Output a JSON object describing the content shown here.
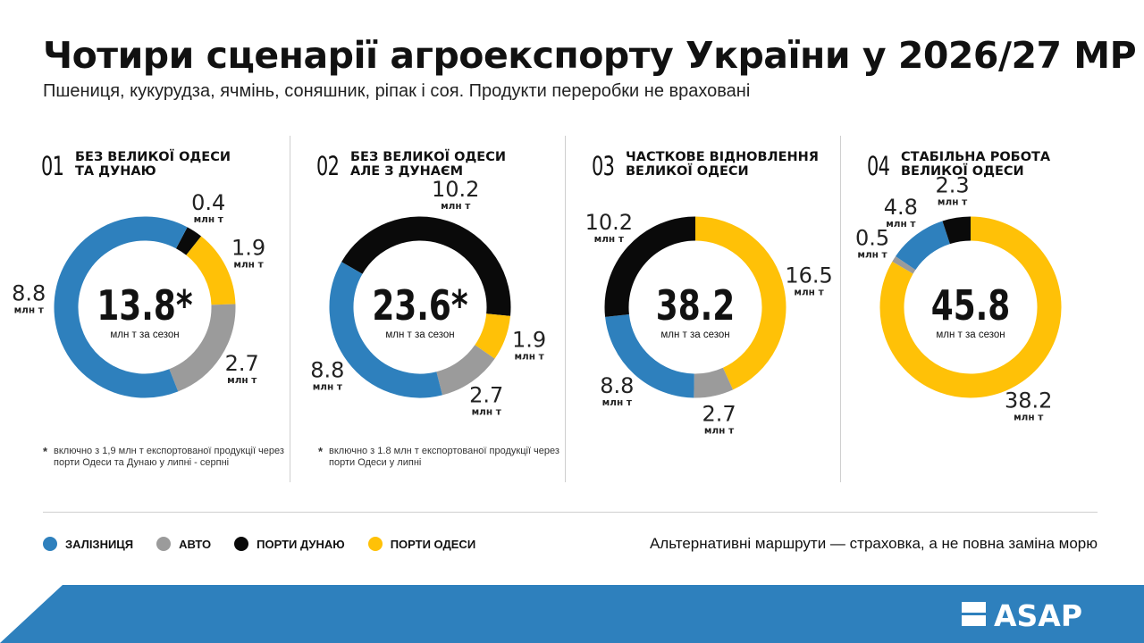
{
  "title": "Чотири сценарії агроекспорту України у 2026/27 МР",
  "subtitle": "Пшениця, кукурудза, ячмінь, соняшник, ріпак і соя. Продукти переробки не враховані",
  "colors": {
    "rail": "#2E80BD",
    "auto": "#9B9B9B",
    "danube": "#0A0A0A",
    "odesa": "#FFC107",
    "footer_band": "#2E80BD"
  },
  "legend": [
    {
      "key": "rail",
      "label": "ЗАЛІЗНИЦЯ",
      "color": "#2E80BD"
    },
    {
      "key": "auto",
      "label": "АВТО",
      "color": "#9B9B9B"
    },
    {
      "key": "danube",
      "label": "ПОРТИ ДУНАЮ",
      "color": "#0A0A0A"
    },
    {
      "key": "odesa",
      "label": "ПОРТИ ОДЕСИ",
      "color": "#FFC107"
    }
  ],
  "tagline": "Альтернативні маршрути — страховка, а не повна заміна морю",
  "brand": {
    "logo": "ASAP"
  },
  "chart_data": [
    {
      "type": "pie",
      "number": "01",
      "heading": [
        "БЕЗ ВЕЛИКОЇ ОДЕСИ",
        "ТА ДУНАЮ"
      ],
      "total": "13.8*",
      "total_unit": "млн т за сезон",
      "slices": [
        {
          "category": "rail",
          "value": 8.8,
          "label": "8.8",
          "unit": "млн т"
        },
        {
          "category": "danube",
          "value": 0.4,
          "label": "0.4",
          "unit": "млн т"
        },
        {
          "category": "odesa",
          "value": 1.9,
          "label": "1.9",
          "unit": "млн т"
        },
        {
          "category": "auto",
          "value": 2.7,
          "label": "2.7",
          "unit": "млн т"
        }
      ],
      "note": "включно з 1,9 млн т експортованої продукції через порти Одеси та Дунаю у липні - серпні"
    },
    {
      "type": "pie",
      "number": "02",
      "heading": [
        "БЕЗ ВЕЛИКОЇ ОДЕСИ",
        "АЛЕ З ДУНАЄМ"
      ],
      "total": "23.6*",
      "total_unit": "млн т за сезон",
      "slices": [
        {
          "category": "rail",
          "value": 8.8,
          "label": "8.8",
          "unit": "млн т"
        },
        {
          "category": "danube",
          "value": 10.2,
          "label": "10.2",
          "unit": "млн т"
        },
        {
          "category": "odesa",
          "value": 1.9,
          "label": "1.9",
          "unit": "млн т"
        },
        {
          "category": "auto",
          "value": 2.7,
          "label": "2.7",
          "unit": "млн т"
        }
      ],
      "note": "включно з 1.8 млн т експортованої продукції через порти Одеси у липні"
    },
    {
      "type": "pie",
      "number": "03",
      "heading": [
        "ЧАСТКОВЕ ВІДНОВЛЕННЯ",
        "ВЕЛИКОЇ ОДЕСИ"
      ],
      "total": "38.2",
      "total_unit": "млн т за сезон",
      "slices": [
        {
          "category": "rail",
          "value": 8.8,
          "label": "8.8",
          "unit": "млн т"
        },
        {
          "category": "danube",
          "value": 10.2,
          "label": "10.2",
          "unit": "млн т"
        },
        {
          "category": "odesa",
          "value": 16.5,
          "label": "16.5",
          "unit": "млн т"
        },
        {
          "category": "auto",
          "value": 2.7,
          "label": "2.7",
          "unit": "млн т"
        }
      ],
      "note": ""
    },
    {
      "type": "pie",
      "number": "04",
      "heading": [
        "СТАБІЛЬНА РОБОТА",
        "ВЕЛИКОЇ ОДЕСИ"
      ],
      "total": "45.8",
      "total_unit": "млн т за сезон",
      "slices": [
        {
          "category": "danube",
          "value": 2.3,
          "label": "2.3",
          "unit": "млн т"
        },
        {
          "category": "odesa",
          "value": 38.2,
          "label": "38.2",
          "unit": "млн т"
        },
        {
          "category": "auto",
          "value": 0.5,
          "label": "0.5",
          "unit": "млн т"
        },
        {
          "category": "rail",
          "value": 4.8,
          "label": "4.8",
          "unit": "млн т"
        }
      ],
      "note": ""
    }
  ]
}
